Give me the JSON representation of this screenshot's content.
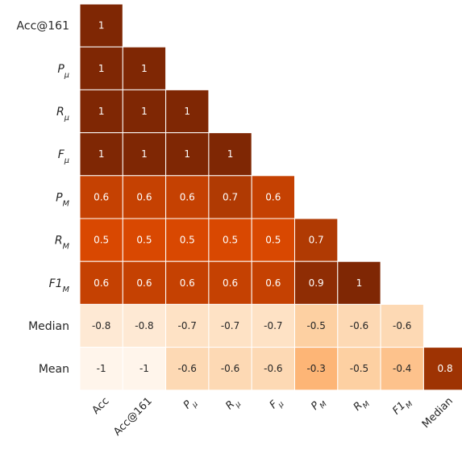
{
  "chart_data": {
    "type": "heatmap",
    "row_labels": [
      {
        "text": "Acc@161"
      },
      {
        "text": "P",
        "sub": "μ"
      },
      {
        "text": "R",
        "sub": "μ"
      },
      {
        "text": "F",
        "sub": "μ"
      },
      {
        "text": "P",
        "sub": "M"
      },
      {
        "text": "R",
        "sub": "M"
      },
      {
        "text": "F1",
        "sub": "M"
      },
      {
        "text": "Median"
      },
      {
        "text": "Mean"
      }
    ],
    "col_labels": [
      {
        "text": "Acc"
      },
      {
        "text": "Acc@161"
      },
      {
        "text": "P",
        "sub": "μ"
      },
      {
        "text": "R",
        "sub": "μ"
      },
      {
        "text": "F",
        "sub": "μ"
      },
      {
        "text": "P",
        "sub": "M"
      },
      {
        "text": "R",
        "sub": "M"
      },
      {
        "text": "F1",
        "sub": "M"
      },
      {
        "text": "Median"
      }
    ],
    "values": [
      [
        1
      ],
      [
        1,
        1
      ],
      [
        1,
        1,
        1
      ],
      [
        1,
        1,
        1,
        1
      ],
      [
        0.6,
        0.6,
        0.6,
        0.7,
        0.6
      ],
      [
        0.5,
        0.5,
        0.5,
        0.5,
        0.5,
        0.7
      ],
      [
        0.6,
        0.6,
        0.6,
        0.6,
        0.6,
        0.9,
        1
      ],
      [
        -0.8,
        -0.8,
        -0.7,
        -0.7,
        -0.7,
        -0.5,
        -0.6,
        -0.6
      ],
      [
        -1,
        -1,
        -0.6,
        -0.6,
        -0.6,
        -0.3,
        -0.5,
        -0.4,
        0.8
      ]
    ],
    "value_range": [
      -1,
      1
    ],
    "colormap": "Oranges",
    "colors": {
      "low": "#fff5eb",
      "high": "#7f2704"
    },
    "annotated": true,
    "lower_triangle_only": true
  }
}
